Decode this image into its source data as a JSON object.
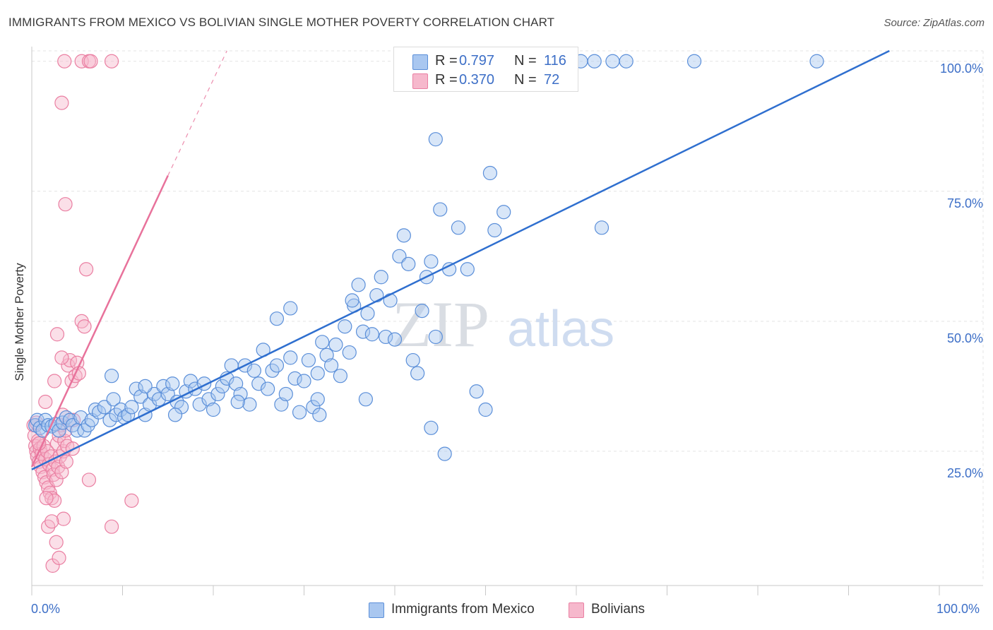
{
  "title": "IMMIGRANTS FROM MEXICO VS BOLIVIAN SINGLE MOTHER POVERTY CORRELATION CHART",
  "source": "Source: ZipAtlas.com",
  "watermark": {
    "zip": "ZIP",
    "atlas": "atlas"
  },
  "legend_stats": [
    {
      "r_label": "R =",
      "r_value": "0.797",
      "n_label": "N =",
      "n_value": "116"
    },
    {
      "r_label": "R =",
      "r_value": "0.370",
      "n_label": "N =",
      "n_value": "72"
    }
  ],
  "colors": {
    "blue_fill": "#a9c7f0",
    "blue_stroke": "#5b8fd9",
    "blue_line": "#2f6fcf",
    "pink_fill": "#f6b8cc",
    "pink_stroke": "#ea7fa2",
    "pink_line": "#e8729b",
    "grid": "#e4e4e4",
    "tick_text": "#3d6fc7"
  },
  "chart_data": {
    "type": "scatter",
    "title": "IMMIGRANTS FROM MEXICO VS BOLIVIAN SINGLE MOTHER POVERTY CORRELATION CHART",
    "xlabel": "",
    "ylabel": "Single Mother Poverty",
    "xlim": [
      0,
      100
    ],
    "ylim": [
      0,
      102
    ],
    "x_tick_labels": [
      "0.0%",
      "100.0%"
    ],
    "y_ticks": [
      25,
      50,
      75,
      100
    ],
    "y_tick_labels": [
      "25.0%",
      "50.0%",
      "75.0%",
      "100.0%"
    ],
    "grid": true,
    "series": [
      {
        "name": "Immigrants from Mexico",
        "color": "blue",
        "r": 0.797,
        "n": 116,
        "trend": {
          "x1": 0.0,
          "y1": 21.5,
          "x2": 94.5,
          "y2": 102.0,
          "dashed_to": null
        },
        "points": [
          [
            0.4,
            30.0
          ],
          [
            0.6,
            31.0
          ],
          [
            0.9,
            29.5
          ],
          [
            1.2,
            29.0
          ],
          [
            1.5,
            31.0
          ],
          [
            1.8,
            30.0
          ],
          [
            2.2,
            29.8
          ],
          [
            2.6,
            30.2
          ],
          [
            3.0,
            29.0
          ],
          [
            3.4,
            30.5
          ],
          [
            3.8,
            31.5
          ],
          [
            4.2,
            31.0
          ],
          [
            4.5,
            30.0
          ],
          [
            5.0,
            29.0
          ],
          [
            5.4,
            31.5
          ],
          [
            5.8,
            29.0
          ],
          [
            6.2,
            30.0
          ],
          [
            6.6,
            31.0
          ],
          [
            7.0,
            33.0
          ],
          [
            7.4,
            32.5
          ],
          [
            8.0,
            33.5
          ],
          [
            8.6,
            31.0
          ],
          [
            9.0,
            35.0
          ],
          [
            9.3,
            32.0
          ],
          [
            9.8,
            33.0
          ],
          [
            10.2,
            31.5
          ],
          [
            10.6,
            32.0
          ],
          [
            11.0,
            33.5
          ],
          [
            11.5,
            37.0
          ],
          [
            12.0,
            35.5
          ],
          [
            12.5,
            32.0
          ],
          [
            13.0,
            34.0
          ],
          [
            13.5,
            36.0
          ],
          [
            14.0,
            35.0
          ],
          [
            14.5,
            37.5
          ],
          [
            15.0,
            36.0
          ],
          [
            15.5,
            38.0
          ],
          [
            16.0,
            34.5
          ],
          [
            16.5,
            33.5
          ],
          [
            17.0,
            36.5
          ],
          [
            17.5,
            38.5
          ],
          [
            18.0,
            37.0
          ],
          [
            18.5,
            34.0
          ],
          [
            19.0,
            38.0
          ],
          [
            19.5,
            35.0
          ],
          [
            20.0,
            33.0
          ],
          [
            20.5,
            36.0
          ],
          [
            21.0,
            37.5
          ],
          [
            21.5,
            39.0
          ],
          [
            22.0,
            41.5
          ],
          [
            22.5,
            38.0
          ],
          [
            23.0,
            36.0
          ],
          [
            23.5,
            41.5
          ],
          [
            24.0,
            34.0
          ],
          [
            24.5,
            40.5
          ],
          [
            25.0,
            38.0
          ],
          [
            25.5,
            44.5
          ],
          [
            26.0,
            37.0
          ],
          [
            26.5,
            40.5
          ],
          [
            27.0,
            41.5
          ],
          [
            27.5,
            34.0
          ],
          [
            28.0,
            36.0
          ],
          [
            28.5,
            43.0
          ],
          [
            29.0,
            39.0
          ],
          [
            29.5,
            32.5
          ],
          [
            30.0,
            38.5
          ],
          [
            30.5,
            42.5
          ],
          [
            31.0,
            33.5
          ],
          [
            31.5,
            35.0
          ],
          [
            32.0,
            46.0
          ],
          [
            32.5,
            43.5
          ],
          [
            33.0,
            41.5
          ],
          [
            33.5,
            45.5
          ],
          [
            34.0,
            39.5
          ],
          [
            34.5,
            49.0
          ],
          [
            35.0,
            44.0
          ],
          [
            35.5,
            53.0
          ],
          [
            36.0,
            57.0
          ],
          [
            36.5,
            48.0
          ],
          [
            37.0,
            51.5
          ],
          [
            37.5,
            47.5
          ],
          [
            38.0,
            55.0
          ],
          [
            38.5,
            58.5
          ],
          [
            39.0,
            47.0
          ],
          [
            39.5,
            54.0
          ],
          [
            40.0,
            46.5
          ],
          [
            40.5,
            62.5
          ],
          [
            41.0,
            66.5
          ],
          [
            41.5,
            61.0
          ],
          [
            42.0,
            42.5
          ],
          [
            42.5,
            40.0
          ],
          [
            43.0,
            52.0
          ],
          [
            43.5,
            58.5
          ],
          [
            44.0,
            61.5
          ],
          [
            44.5,
            47.0
          ],
          [
            45.0,
            71.5
          ],
          [
            46.0,
            60.0
          ],
          [
            47.0,
            68.0
          ],
          [
            48.0,
            60.0
          ],
          [
            49.0,
            36.5
          ],
          [
            50.0,
            33.0
          ],
          [
            51.0,
            67.5
          ],
          [
            52.0,
            71.0
          ],
          [
            27.0,
            50.5
          ],
          [
            28.5,
            52.5
          ],
          [
            31.5,
            40.0
          ],
          [
            31.7,
            32.0
          ],
          [
            44.5,
            85.0
          ],
          [
            50.5,
            78.5
          ],
          [
            45.5,
            24.5
          ],
          [
            55.0,
            100.0
          ],
          [
            57.5,
            100.0
          ],
          [
            60.5,
            100.0
          ],
          [
            62.0,
            100.0
          ],
          [
            64.0,
            100.0
          ],
          [
            65.5,
            100.0
          ],
          [
            73.0,
            100.0
          ],
          [
            86.5,
            100.0
          ],
          [
            62.8,
            68.0
          ],
          [
            36.8,
            35.0
          ],
          [
            15.8,
            32.0
          ],
          [
            44.0,
            29.5
          ],
          [
            8.8,
            39.5
          ],
          [
            22.7,
            34.5
          ],
          [
            35.3,
            54.0
          ],
          [
            12.5,
            37.5
          ]
        ]
      },
      {
        "name": "Bolivians",
        "color": "pink",
        "r": 0.37,
        "n": 72,
        "trend": {
          "x1": 0.0,
          "y1": 22.0,
          "x2": 15.0,
          "y2": 78.0,
          "dashed_to": [
            21.5,
            102.0
          ]
        },
        "points": [
          [
            0.2,
            30.0
          ],
          [
            0.3,
            28.0
          ],
          [
            0.4,
            26.0
          ],
          [
            0.5,
            25.0
          ],
          [
            0.6,
            24.0
          ],
          [
            0.7,
            27.0
          ],
          [
            0.8,
            23.0
          ],
          [
            0.9,
            25.5
          ],
          [
            1.0,
            22.0
          ],
          [
            1.1,
            24.5
          ],
          [
            1.2,
            21.0
          ],
          [
            1.3,
            26.0
          ],
          [
            1.4,
            20.0
          ],
          [
            1.5,
            23.5
          ],
          [
            1.6,
            19.0
          ],
          [
            1.7,
            25.0
          ],
          [
            1.8,
            18.0
          ],
          [
            1.9,
            22.5
          ],
          [
            2.0,
            17.0
          ],
          [
            2.1,
            24.0
          ],
          [
            2.2,
            16.0
          ],
          [
            2.3,
            21.5
          ],
          [
            2.4,
            20.5
          ],
          [
            2.5,
            15.5
          ],
          [
            2.6,
            23.0
          ],
          [
            2.7,
            19.5
          ],
          [
            2.8,
            26.5
          ],
          [
            2.9,
            22.0
          ],
          [
            3.0,
            28.0
          ],
          [
            3.1,
            24.0
          ],
          [
            3.2,
            30.0
          ],
          [
            3.3,
            21.0
          ],
          [
            3.4,
            32.0
          ],
          [
            3.5,
            25.0
          ],
          [
            3.6,
            27.0
          ],
          [
            3.7,
            29.0
          ],
          [
            3.8,
            23.0
          ],
          [
            3.9,
            26.0
          ],
          [
            4.0,
            41.5
          ],
          [
            4.2,
            42.5
          ],
          [
            4.4,
            38.5
          ],
          [
            4.6,
            31.0
          ],
          [
            4.8,
            39.5
          ],
          [
            5.0,
            42.0
          ],
          [
            5.2,
            40.0
          ],
          [
            5.5,
            50.0
          ],
          [
            5.8,
            49.0
          ],
          [
            6.0,
            60.0
          ],
          [
            6.3,
            19.5
          ],
          [
            2.5,
            38.5
          ],
          [
            3.3,
            43.0
          ],
          [
            1.5,
            34.5
          ],
          [
            2.8,
            47.5
          ],
          [
            3.7,
            72.5
          ],
          [
            3.3,
            92.0
          ],
          [
            3.6,
            100.0
          ],
          [
            5.5,
            100.0
          ],
          [
            6.3,
            100.0
          ],
          [
            6.5,
            100.0
          ],
          [
            8.8,
            100.0
          ],
          [
            11.0,
            15.5
          ],
          [
            8.8,
            10.5
          ],
          [
            3.5,
            12.0
          ],
          [
            1.8,
            10.5
          ],
          [
            2.2,
            11.5
          ],
          [
            2.7,
            7.5
          ],
          [
            2.3,
            3.0
          ],
          [
            3.0,
            4.5
          ],
          [
            0.5,
            30.5
          ],
          [
            0.8,
            26.5
          ],
          [
            1.6,
            16.0
          ],
          [
            4.5,
            25.5
          ]
        ]
      }
    ]
  },
  "bottom_legend": [
    "Immigrants from Mexico",
    "Bolivians"
  ]
}
